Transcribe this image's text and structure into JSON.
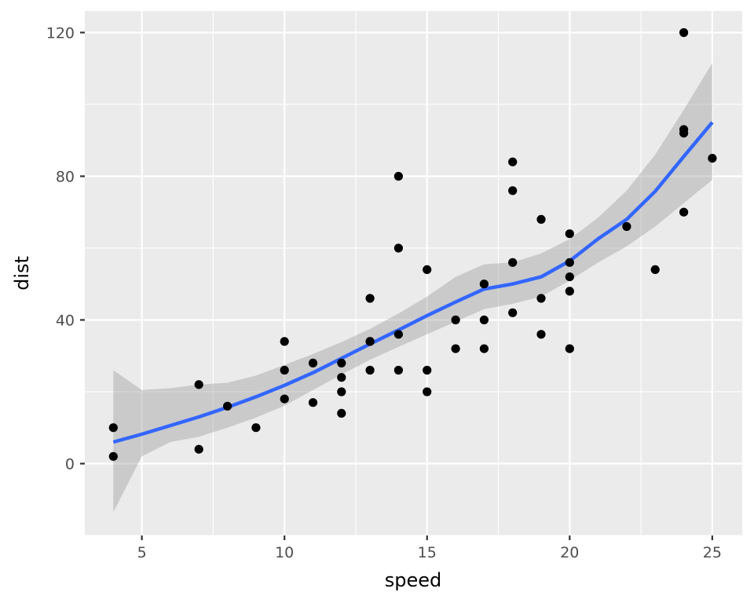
{
  "chart_data": {
    "type": "scatter",
    "xlabel": "speed",
    "ylabel": "dist",
    "xlim": [
      3.0,
      26.05
    ],
    "ylim": [
      -20.0,
      126.0
    ],
    "x_ticks": [
      5,
      10,
      15,
      20,
      25
    ],
    "x_minor_ticks": [
      7.5,
      12.5,
      17.5,
      22.5
    ],
    "y_ticks": [
      0,
      40,
      80,
      120
    ],
    "y_minor_ticks": [
      -20,
      20,
      60,
      100
    ],
    "grid": true,
    "colors": {
      "panel_background": "#EBEBEB",
      "grid": "#FFFFFF",
      "points": "#000000",
      "smooth_line": "#3366FF",
      "confidence_band": "#999999"
    },
    "points": {
      "x": [
        4,
        4,
        7,
        7,
        8,
        9,
        10,
        10,
        10,
        11,
        11,
        12,
        12,
        12,
        12,
        13,
        13,
        13,
        13,
        14,
        14,
        14,
        14,
        15,
        15,
        15,
        16,
        16,
        17,
        17,
        17,
        18,
        18,
        18,
        18,
        19,
        19,
        19,
        20,
        20,
        20,
        20,
        20,
        22,
        23,
        24,
        24,
        24,
        24,
        25
      ],
      "y": [
        2,
        10,
        4,
        22,
        16,
        10,
        18,
        26,
        34,
        17,
        28,
        14,
        20,
        24,
        28,
        26,
        34,
        34,
        46,
        26,
        36,
        60,
        80,
        20,
        26,
        54,
        32,
        40,
        32,
        40,
        50,
        42,
        56,
        76,
        84,
        36,
        46,
        68,
        32,
        48,
        52,
        56,
        64,
        66,
        54,
        70,
        92,
        93,
        120,
        85
      ]
    },
    "smooth": {
      "name": "loess",
      "x": [
        4,
        5,
        6,
        7,
        8,
        9,
        10,
        11,
        12,
        13,
        14,
        15,
        16,
        17,
        18,
        19,
        20,
        21,
        22,
        23,
        24,
        25
      ],
      "y": [
        6.0,
        8.2,
        10.6,
        13.0,
        15.7,
        18.6,
        21.8,
        25.3,
        29.3,
        33.3,
        37.2,
        41.2,
        45.0,
        48.6,
        50.0,
        52.0,
        56.4,
        62.6,
        68.0,
        75.8,
        85.5,
        95.0
      ],
      "lower": [
        -13.5,
        2.0,
        6.0,
        7.5,
        10.0,
        12.8,
        16.1,
        20.5,
        24.8,
        28.9,
        32.5,
        36.0,
        39.5,
        43.0,
        44.5,
        46.5,
        51.0,
        56.0,
        60.5,
        66.0,
        72.5,
        79.0
      ],
      "upper": [
        26.0,
        20.5,
        21.0,
        22.0,
        22.5,
        24.5,
        27.5,
        30.5,
        33.8,
        37.5,
        41.8,
        46.5,
        52.0,
        55.5,
        56.0,
        58.5,
        62.5,
        68.5,
        76.0,
        86.0,
        98.5,
        111.5
      ]
    }
  }
}
